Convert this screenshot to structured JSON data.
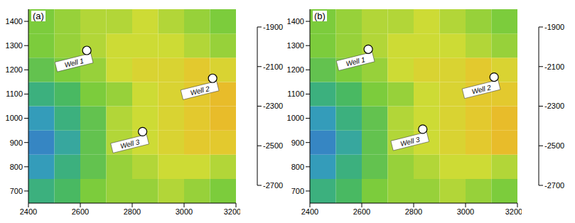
{
  "chart_data": [
    {
      "type": "heatmap",
      "title": "(a)",
      "xlim": [
        2400,
        3200
      ],
      "xticks": [
        2400,
        2600,
        2800,
        3000,
        3200
      ],
      "ylim": [
        650,
        1450
      ],
      "yticks": [
        700,
        800,
        900,
        1000,
        1100,
        1200,
        1300,
        1400
      ],
      "cells": {
        "x": [
          2450,
          2550,
          2650,
          2750,
          2850,
          2950,
          3050,
          3150
        ],
        "y": [
          700,
          800,
          900,
          1000,
          1100,
          1200,
          1300,
          1400
        ],
        "z": [
          [
            -2450,
            -2400,
            -2300,
            -2250,
            -2250,
            -2200,
            -2250,
            -2300
          ],
          [
            -2550,
            -2450,
            -2350,
            -2250,
            -2200,
            -2150,
            -2150,
            -2200
          ],
          [
            -2600,
            -2500,
            -2350,
            -2200,
            -2150,
            -2100,
            -2050,
            -2050
          ],
          [
            -2550,
            -2450,
            -2350,
            -2200,
            -2150,
            -2100,
            -2050,
            -2000
          ],
          [
            -2450,
            -2400,
            -2300,
            -2250,
            -2150,
            -2100,
            -2050,
            -2000
          ],
          [
            -2350,
            -2300,
            -2250,
            -2150,
            -2100,
            -2100,
            -2050,
            -2100
          ],
          [
            -2300,
            -2250,
            -2200,
            -2150,
            -2150,
            -2150,
            -2200,
            -2250
          ],
          [
            -2300,
            -2250,
            -2200,
            -2200,
            -2150,
            -2200,
            -2250,
            -2300
          ]
        ]
      },
      "colorbar": {
        "range": [
          -2700,
          -1900
        ],
        "ticks": [
          -2700,
          -2500,
          -2300,
          -2100,
          -1900
        ]
      },
      "wells": [
        {
          "x": 2625,
          "y": 1280,
          "label": "Well 1"
        },
        {
          "x": 3110,
          "y": 1165,
          "label": "Well 2"
        },
        {
          "x": 2840,
          "y": 945,
          "label": "Well 3"
        }
      ]
    },
    {
      "type": "heatmap",
      "title": "(b)",
      "xlim": [
        2400,
        3200
      ],
      "xticks": [
        2400,
        2600,
        2800,
        3000,
        3200
      ],
      "ylim": [
        650,
        1450
      ],
      "yticks": [
        700,
        800,
        900,
        1000,
        1100,
        1200,
        1300,
        1400
      ],
      "cells": {
        "x": [
          2450,
          2550,
          2650,
          2750,
          2850,
          2950,
          3050,
          3150
        ],
        "y": [
          700,
          800,
          900,
          1000,
          1100,
          1200,
          1300,
          1400
        ],
        "z": [
          [
            -2450,
            -2400,
            -2300,
            -2250,
            -2250,
            -2200,
            -2250,
            -2300
          ],
          [
            -2550,
            -2450,
            -2350,
            -2250,
            -2200,
            -2150,
            -2150,
            -2200
          ],
          [
            -2600,
            -2500,
            -2350,
            -2200,
            -2150,
            -2100,
            -2050,
            -2000
          ],
          [
            -2550,
            -2450,
            -2350,
            -2200,
            -2150,
            -2100,
            -2050,
            -2000
          ],
          [
            -2450,
            -2400,
            -2300,
            -2250,
            -2150,
            -2100,
            -2050,
            -2050
          ],
          [
            -2350,
            -2300,
            -2250,
            -2150,
            -2100,
            -2100,
            -2050,
            -2100
          ],
          [
            -2300,
            -2250,
            -2200,
            -2150,
            -2150,
            -2150,
            -2200,
            -2250
          ],
          [
            -2300,
            -2250,
            -2200,
            -2200,
            -2150,
            -2200,
            -2250,
            -2300
          ]
        ]
      },
      "colorbar": {
        "range": [
          -2700,
          -1900
        ],
        "ticks": [
          -2700,
          -2500,
          -2300,
          -2100,
          -1900
        ]
      },
      "wells": [
        {
          "x": 2625,
          "y": 1285,
          "label": "Well 1"
        },
        {
          "x": 3110,
          "y": 1170,
          "label": "Well 2"
        },
        {
          "x": 2835,
          "y": 955,
          "label": "Well 3"
        }
      ]
    }
  ]
}
